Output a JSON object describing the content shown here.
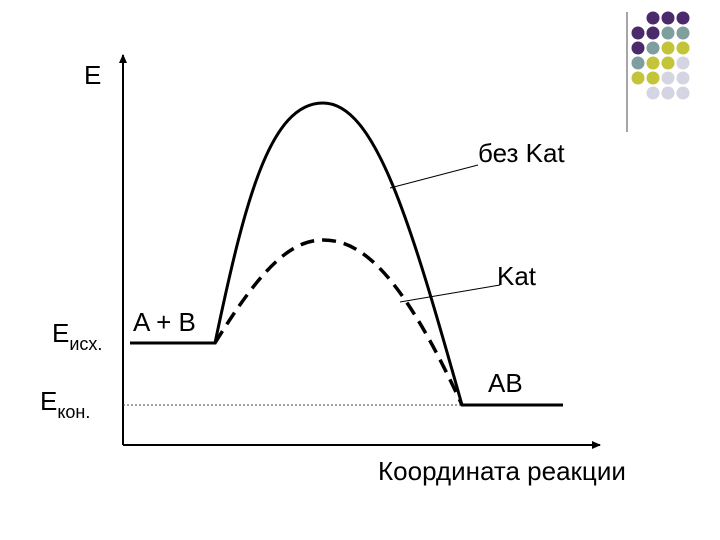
{
  "axis": {
    "y_label": "E",
    "x_label": "Координата реакции"
  },
  "curves": {
    "uncatalyzed": "без Kat",
    "catalyzed": "Kat"
  },
  "levels": {
    "initial": {
      "symbol": "E",
      "subscript": "исх."
    },
    "final": {
      "symbol": "E",
      "subscript": "кон."
    }
  },
  "species": {
    "reactants": "A + B",
    "product": "AB"
  }
}
